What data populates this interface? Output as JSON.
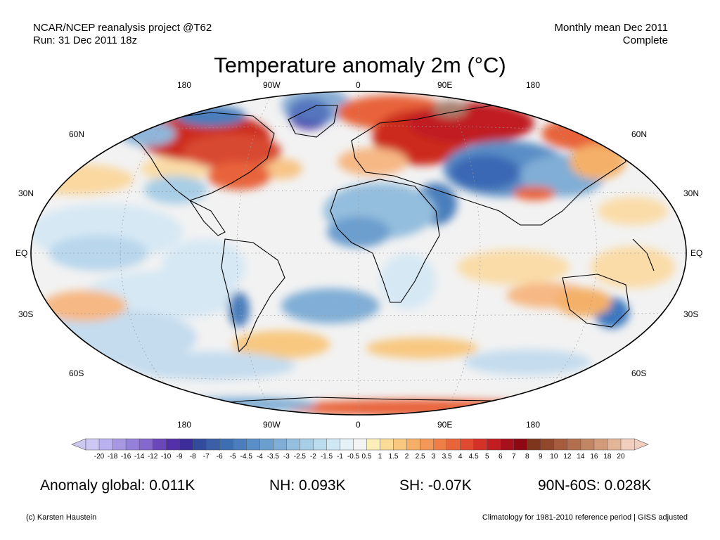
{
  "header": {
    "line1_left": "NCAR/NCEP reanalysis project @T62",
    "line2_left": "Run: 31 Dec 2011 18z",
    "line1_right": "Monthly mean Dec 2011",
    "line2_right": "Complete",
    "title": "Temperature anomaly 2m (°C)"
  },
  "map": {
    "top_lon_labels": [
      "180",
      "90W",
      "0",
      "90E",
      "180"
    ],
    "bottom_lon_labels": [
      "180",
      "90W",
      "0",
      "90E",
      "180"
    ],
    "left_lat_labels": [
      "60N",
      "30N",
      "EQ",
      "30S",
      "60S"
    ],
    "right_lat_labels": [
      "60N",
      "30N",
      "EQ",
      "30S",
      "60S"
    ],
    "ocean_color": "#f2f2f2",
    "anomalies": [
      {
        "region": "north-america-northeast",
        "sign": "warm",
        "color": "#cc2a1e"
      },
      {
        "region": "greenland",
        "sign": "cold",
        "color": "#4b38a8"
      },
      {
        "region": "arctic-russia",
        "sign": "warm",
        "color": "#a01018"
      },
      {
        "region": "kara-sea",
        "sign": "warm",
        "color": "#a98070"
      },
      {
        "region": "central-asia",
        "sign": "cold",
        "color": "#3a68b4"
      },
      {
        "region": "sahara",
        "sign": "cold",
        "color": "#8fc0e0"
      },
      {
        "region": "australia-east",
        "sign": "cold",
        "color": "#3a78c0"
      },
      {
        "region": "antarctica-coast",
        "sign": "warm",
        "color": "#e8642a"
      }
    ]
  },
  "colorbar": {
    "labels": [
      "-20",
      "-18",
      "-16",
      "-14",
      "-12",
      "-10",
      "-9",
      "-8",
      "-7",
      "-6",
      "-5",
      "-4.5",
      "-4",
      "-3.5",
      "-3",
      "-2.5",
      "-2",
      "-1.5",
      "-1",
      "-0.5",
      "0.5",
      "1",
      "1.5",
      "2",
      "2.5",
      "3",
      "3.5",
      "4",
      "4.5",
      "5",
      "6",
      "7",
      "8",
      "9",
      "10",
      "12",
      "14",
      "16",
      "18",
      "20"
    ],
    "colors": [
      "#ccc8f4",
      "#bab2ee",
      "#a898e4",
      "#9580da",
      "#8468cc",
      "#6a48ba",
      "#5330a8",
      "#3c2c98",
      "#314c9c",
      "#3a5ea8",
      "#3e6eb2",
      "#4a7ebc",
      "#5a8ec6",
      "#6c9ece",
      "#80aed6",
      "#94beDE",
      "#a8cee6",
      "#bcdcee",
      "#d0e8f4",
      "#e4f2f8",
      "#f4f4f4",
      "#fceeb8",
      "#fadc98",
      "#f8c880",
      "#f4b068",
      "#f29858",
      "#ee7e48",
      "#e8643a",
      "#e04a30",
      "#d43228",
      "#c01e22",
      "#a8101c",
      "#8e0814",
      "#80361c",
      "#92482c",
      "#a45c3c",
      "#b2704e",
      "#c28664",
      "#d29c7a",
      "#e2b498",
      "#f2cebe"
    ]
  },
  "stats": {
    "global": "Anomaly global: 0.011K",
    "nh": "NH: 0.093K",
    "sh": "SH: -0.07K",
    "arctic": "90N-60S: 0.028K"
  },
  "footer": {
    "left": "(c) Karsten Haustein",
    "right": "Climatology for 1981-2010 reference period | GISS adjusted"
  }
}
